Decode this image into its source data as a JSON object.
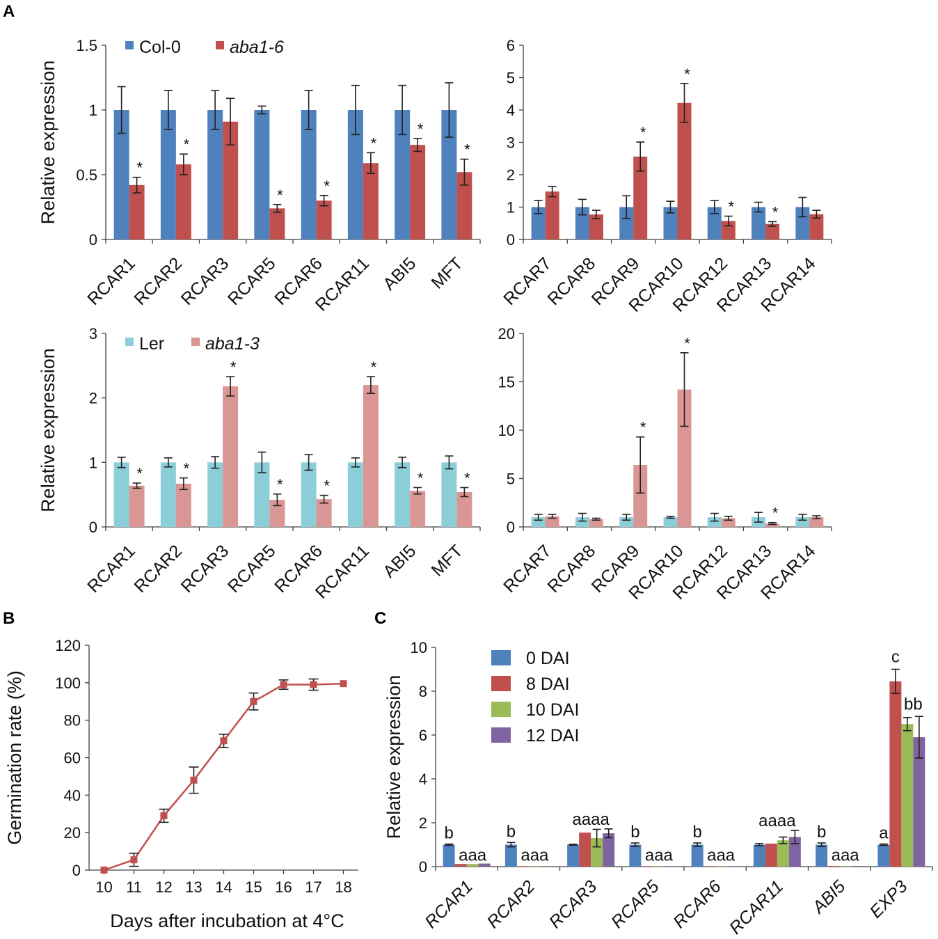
{
  "panel_letters": [
    "A",
    "B",
    "C"
  ],
  "chart_data": [
    {
      "id": "A1",
      "type": "bar",
      "ylabel": "Relative expression",
      "ylim": [
        0,
        1.5
      ],
      "yticks": [
        "0",
        "0.5",
        "1",
        "1.5"
      ],
      "categories": [
        "RCAR1",
        "RCAR2",
        "RCAR3",
        "RCAR5",
        "RCAR6",
        "RCAR11",
        "ABI5",
        "MFT"
      ],
      "legend": [
        "Col-0",
        "aba1-6"
      ],
      "colors": [
        "#4f81bd",
        "#c0504d"
      ],
      "series": [
        {
          "name": "Col-0",
          "values": [
            1,
            1,
            1,
            1,
            1,
            1,
            1,
            1
          ],
          "errors": [
            0.18,
            0.15,
            0.15,
            0.03,
            0.15,
            0.19,
            0.19,
            0.21
          ],
          "marks": [
            "",
            "",
            "",
            "",
            "",
            "",
            "",
            ""
          ]
        },
        {
          "name": "aba1-6",
          "values": [
            0.42,
            0.58,
            0.91,
            0.24,
            0.3,
            0.59,
            0.73,
            0.52
          ],
          "errors": [
            0.06,
            0.08,
            0.18,
            0.03,
            0.04,
            0.08,
            0.05,
            0.1
          ],
          "marks": [
            "*",
            "*",
            "",
            "*",
            "*",
            "*",
            "*",
            "*"
          ]
        }
      ]
    },
    {
      "id": "A2",
      "type": "bar",
      "ylabel": "",
      "ylim": [
        0,
        6
      ],
      "yticks": [
        "0",
        "1",
        "2",
        "3",
        "4",
        "5",
        "6"
      ],
      "categories": [
        "RCAR7",
        "RCAR8",
        "RCAR9",
        "RCAR10",
        "RCAR12",
        "RCAR13",
        "RCAR14"
      ],
      "legend": [],
      "colors": [
        "#4f81bd",
        "#c0504d"
      ],
      "series": [
        {
          "name": "Col-0",
          "values": [
            1,
            1,
            1,
            1,
            1,
            1,
            1
          ],
          "errors": [
            0.2,
            0.24,
            0.35,
            0.18,
            0.2,
            0.15,
            0.3
          ],
          "marks": [
            "",
            "",
            "",
            "",
            "",
            "",
            ""
          ]
        },
        {
          "name": "aba1-6",
          "values": [
            1.48,
            0.77,
            2.56,
            4.22,
            0.57,
            0.48,
            0.78
          ],
          "errors": [
            0.16,
            0.13,
            0.45,
            0.6,
            0.15,
            0.07,
            0.12
          ],
          "marks": [
            "",
            "",
            "*",
            "*",
            "*",
            "*",
            ""
          ]
        }
      ]
    },
    {
      "id": "A3",
      "type": "bar",
      "ylabel": "Relative expression",
      "ylim": [
        0,
        3
      ],
      "yticks": [
        "0",
        "1",
        "2",
        "3"
      ],
      "categories": [
        "RCAR1",
        "RCAR2",
        "RCAR3",
        "RCAR5",
        "RCAR6",
        "RCAR11",
        "ABI5",
        "MFT"
      ],
      "legend": [
        "Ler",
        "aba1-3"
      ],
      "colors": [
        "#8cced8",
        "#da9694"
      ],
      "series": [
        {
          "name": "Ler",
          "values": [
            1,
            1,
            1,
            1,
            1,
            1,
            1,
            1
          ],
          "errors": [
            0.08,
            0.07,
            0.09,
            0.16,
            0.12,
            0.07,
            0.08,
            0.1
          ],
          "marks": [
            "",
            "",
            "",
            "",
            "",
            "",
            "",
            ""
          ]
        },
        {
          "name": "aba1-3",
          "values": [
            0.64,
            0.67,
            2.18,
            0.42,
            0.43,
            2.2,
            0.56,
            0.54
          ],
          "errors": [
            0.04,
            0.09,
            0.15,
            0.09,
            0.06,
            0.13,
            0.05,
            0.07
          ],
          "marks": [
            "*",
            "*",
            "*",
            "*",
            "*",
            "*",
            "*",
            "*"
          ]
        }
      ]
    },
    {
      "id": "A4",
      "type": "bar",
      "ylabel": "",
      "ylim": [
        0,
        20
      ],
      "yticks": [
        "0",
        "5",
        "10",
        "15",
        "20"
      ],
      "categories": [
        "RCAR7",
        "RCAR8",
        "RCAR9",
        "RCAR10",
        "RCAR12",
        "RCAR13",
        "RCAR14"
      ],
      "legend": [],
      "colors": [
        "#8cced8",
        "#da9694"
      ],
      "series": [
        {
          "name": "Ler",
          "values": [
            1,
            1,
            1,
            1,
            1,
            1,
            1
          ],
          "errors": [
            0.3,
            0.4,
            0.3,
            0.1,
            0.4,
            0.5,
            0.3
          ],
          "marks": [
            "",
            "",
            "",
            "",
            "",
            "",
            ""
          ]
        },
        {
          "name": "aba1-3",
          "values": [
            1.1,
            0.8,
            6.4,
            14.2,
            0.9,
            0.35,
            1.0
          ],
          "errors": [
            0.2,
            0.1,
            2.9,
            3.8,
            0.2,
            0.1,
            0.15
          ],
          "marks": [
            "",
            "",
            "*",
            "*",
            "",
            "*",
            ""
          ]
        }
      ]
    },
    {
      "id": "B",
      "type": "line",
      "title": "",
      "xlabel": "Days after incubation at 4°C",
      "ylabel": "Germination rate (%)",
      "x": [
        10,
        11,
        12,
        13,
        14,
        15,
        16,
        17,
        18
      ],
      "xticks": [
        "10",
        "11",
        "12",
        "13",
        "14",
        "15",
        "16",
        "17",
        "18"
      ],
      "ylim": [
        0,
        120
      ],
      "yticks": [
        "0",
        "20",
        "40",
        "60",
        "80",
        "100",
        "120"
      ],
      "color": "#c0504d",
      "series": [
        {
          "name": "germination",
          "values": [
            0,
            5.5,
            29,
            48,
            69,
            90,
            99,
            99,
            99.5
          ],
          "errors": [
            0,
            3.5,
            3.5,
            7,
            3.5,
            4.5,
            2.5,
            3,
            0.5
          ]
        }
      ]
    },
    {
      "id": "C",
      "type": "bar",
      "ylabel": "Relative expression",
      "ylim": [
        0,
        10
      ],
      "yticks": [
        "0",
        "2",
        "4",
        "6",
        "8",
        "10"
      ],
      "categories": [
        "RCAR1",
        "RCAR2",
        "RCAR3",
        "RCAR5",
        "RCAR6",
        "RCAR11",
        "ABI5",
        "EXP3"
      ],
      "legend": [
        "0 DAI",
        "8 DAI",
        "10 DAI",
        "12 DAI"
      ],
      "colors": [
        "#4f81bd",
        "#c0504d",
        "#9bbb59",
        "#8064a2"
      ],
      "series": [
        {
          "name": "0 DAI",
          "values": [
            1,
            1,
            1,
            1,
            1,
            1,
            1,
            1
          ],
          "errors": [
            0.03,
            0.1,
            0.02,
            0.08,
            0.08,
            0.05,
            0.08,
            0.03
          ]
        },
        {
          "name": "8 DAI",
          "values": [
            0.12,
            0.02,
            1.55,
            0.02,
            0.02,
            1.05,
            0.03,
            8.45
          ]
        },
        {
          "name": "10 DAI",
          "values": [
            0.12,
            0.02,
            1.3,
            0.02,
            0.02,
            1.2,
            0.03,
            6.5
          ]
        },
        {
          "name": "12 DAI",
          "values": [
            0.14,
            0.02,
            1.52,
            0.02,
            0.02,
            1.35,
            0.03,
            5.9
          ]
        }
      ],
      "errors_other": [
        [
          0,
          0,
          0,
          0,
          0,
          0,
          0,
          0.55
        ],
        [
          0,
          0,
          0.4,
          0,
          0,
          0.15,
          0,
          0.3
        ],
        [
          0,
          0,
          0.2,
          0,
          0,
          0.3,
          0,
          0.95
        ]
      ],
      "sig_labels": [
        "b",
        "aaa",
        "b",
        "aaa",
        "aaaa",
        "",
        "b",
        "aaa",
        "b",
        "aaa",
        "aaaa",
        "",
        "b",
        "aaa",
        "a",
        "c",
        "bb"
      ]
    }
  ]
}
